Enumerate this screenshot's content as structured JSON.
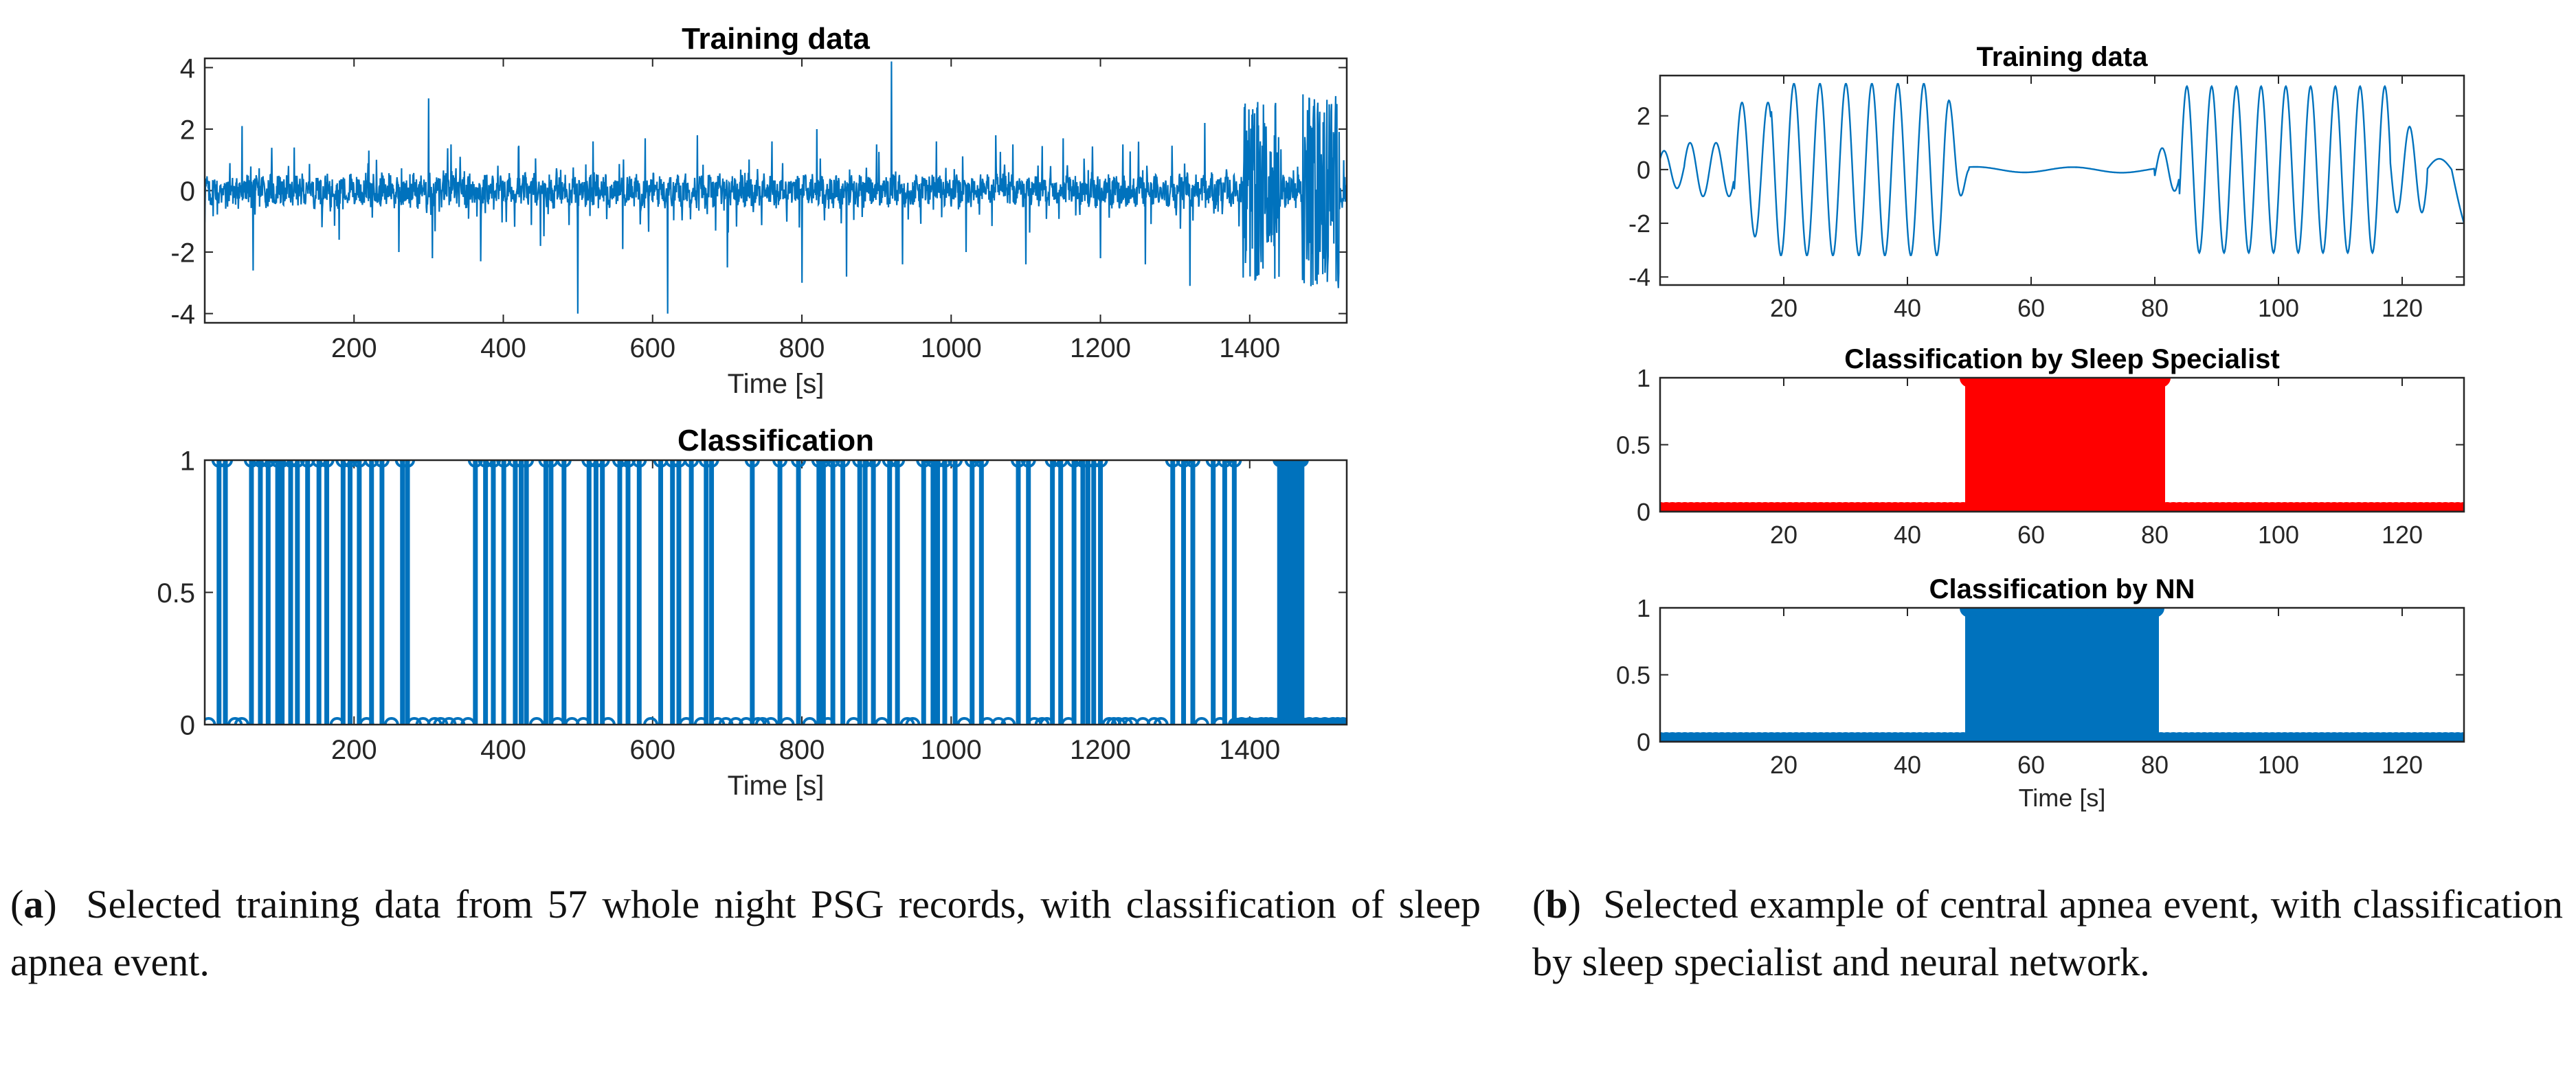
{
  "chart_data": [
    {
      "id": "a-training",
      "type": "line",
      "title": "Training data",
      "xlabel": "Time [s]",
      "ylabel": "",
      "xlim": [
        0,
        1530
      ],
      "ylim": [
        -4.3,
        4.3
      ],
      "xticks": [
        200,
        400,
        600,
        800,
        1000,
        1200,
        1400
      ],
      "yticks": [
        -4,
        -2,
        0,
        2,
        4
      ],
      "color": "#0072BD",
      "spikes": [
        [
          50,
          2.1
        ],
        [
          65,
          -2.6
        ],
        [
          120,
          1.4
        ],
        [
          180,
          -1.6
        ],
        [
          220,
          1.3
        ],
        [
          260,
          -2.0
        ],
        [
          300,
          3.0
        ],
        [
          305,
          -2.2
        ],
        [
          330,
          1.5
        ],
        [
          370,
          -2.3
        ],
        [
          420,
          1.4
        ],
        [
          450,
          -1.8
        ],
        [
          500,
          -4.0
        ],
        [
          520,
          1.6
        ],
        [
          560,
          -1.9
        ],
        [
          590,
          1.7
        ],
        [
          620,
          -4.0
        ],
        [
          660,
          1.8
        ],
        [
          700,
          -2.5
        ],
        [
          760,
          1.6
        ],
        [
          800,
          -3.0
        ],
        [
          820,
          2.0
        ],
        [
          860,
          -2.8
        ],
        [
          900,
          1.5
        ],
        [
          920,
          4.2
        ],
        [
          935,
          -2.4
        ],
        [
          980,
          1.6
        ],
        [
          1020,
          -2.0
        ],
        [
          1060,
          1.8
        ],
        [
          1100,
          -2.4
        ],
        [
          1150,
          1.7
        ],
        [
          1200,
          -2.2
        ],
        [
          1230,
          1.5
        ],
        [
          1260,
          -2.4
        ],
        [
          1320,
          -3.1
        ],
        [
          1340,
          2.2
        ]
      ]
    },
    {
      "id": "a-classification",
      "type": "stem",
      "title": "Classification",
      "xlabel": "Time [s]",
      "ylabel": "",
      "xlim": [
        0,
        1530
      ],
      "ylim": [
        0,
        1
      ],
      "xticks": [
        200,
        400,
        600,
        800,
        1000,
        1200,
        1400
      ],
      "yticks": [
        0,
        0.5,
        1
      ],
      "ytick_labels": [
        "0",
        "0.5",
        "1"
      ],
      "color": "#0072BD",
      "ones_ranges": [
        [
          10,
          280
        ],
        [
          350,
          900
        ],
        [
          900,
          1220
        ],
        [
          1285,
          1380
        ],
        [
          1440,
          1470
        ]
      ]
    },
    {
      "id": "b-training",
      "type": "line",
      "title": "Training data",
      "xlabel": "",
      "ylabel": "",
      "xlim": [
        0,
        130
      ],
      "ylim": [
        -4.3,
        3.5
      ],
      "xticks": [
        20,
        40,
        60,
        80,
        100,
        120
      ],
      "yticks": [
        -4,
        -2,
        0,
        2
      ],
      "color": "#0072BD",
      "segments": [
        {
          "from": 0,
          "to": 50,
          "period": 4,
          "amp": [
            1.0,
            3.2
          ]
        },
        {
          "from": 50,
          "to": 80,
          "flat": true
        },
        {
          "from": 80,
          "to": 130,
          "period": 4,
          "amp": [
            3.2,
            1.0
          ]
        }
      ]
    },
    {
      "id": "b-specialist",
      "type": "stem",
      "title": "Classification by Sleep Specialist",
      "xlabel": "",
      "ylabel": "",
      "xlim": [
        0,
        130
      ],
      "ylim": [
        0,
        1
      ],
      "xticks": [
        20,
        40,
        60,
        80,
        100,
        120
      ],
      "yticks": [
        0,
        0.5,
        1
      ],
      "ytick_labels": [
        "0",
        "0.5",
        "1"
      ],
      "color": "#FF0000",
      "ones_range": [
        50,
        81
      ]
    },
    {
      "id": "b-nn",
      "type": "stem",
      "title": "Classification by NN",
      "xlabel": "Time [s]",
      "ylabel": "",
      "xlim": [
        0,
        130
      ],
      "ylim": [
        0,
        1
      ],
      "xticks": [
        20,
        40,
        60,
        80,
        100,
        120
      ],
      "yticks": [
        0,
        0.5,
        1
      ],
      "ytick_labels": [
        "0",
        "0.5",
        "1"
      ],
      "color": "#0072BD",
      "ones_range": [
        50,
        80
      ]
    }
  ],
  "captions": {
    "a": {
      "label": "a",
      "text": "Selected training data from 57 whole night PSG records, with classification of sleep apnea event."
    },
    "b": {
      "label": "b",
      "text": "Selected example of central apnea event, with classification by sleep specialist and neural network."
    }
  }
}
